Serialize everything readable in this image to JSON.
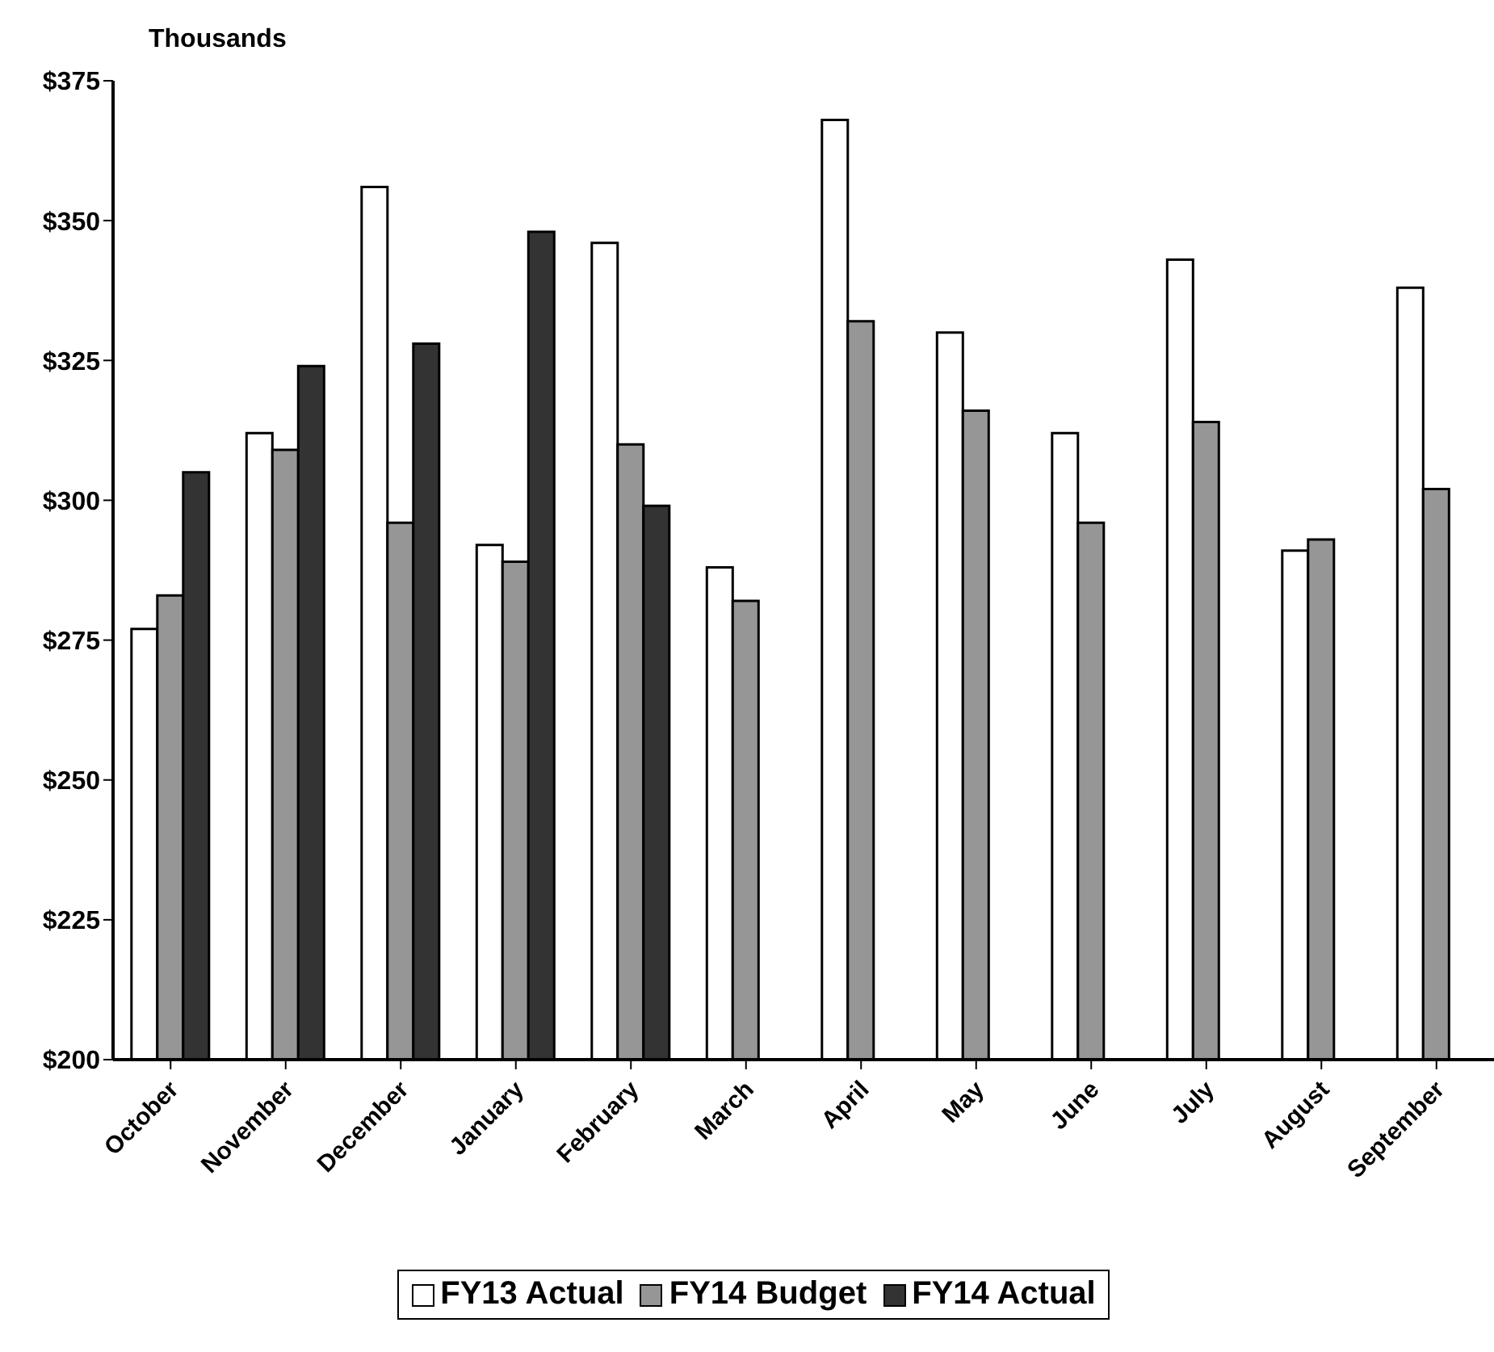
{
  "chart_data": {
    "type": "bar",
    "ylabel": "Thousands",
    "categories": [
      "October",
      "November",
      "December",
      "January",
      "February",
      "March",
      "April",
      "May",
      "June",
      "July",
      "August",
      "September"
    ],
    "series": [
      {
        "name": "FY13 Actual",
        "color": "#ffffff",
        "values": [
          277,
          312,
          356,
          292,
          346,
          288,
          368,
          330,
          312,
          343,
          291,
          338
        ]
      },
      {
        "name": "FY14 Budget",
        "color": "#969696",
        "values": [
          283,
          309,
          296,
          289,
          310,
          282,
          332,
          316,
          296,
          314,
          293,
          302
        ]
      },
      {
        "name": "FY14 Actual",
        "color": "#333333",
        "values": [
          305,
          324,
          328,
          348,
          299,
          null,
          null,
          null,
          null,
          null,
          null,
          null
        ]
      }
    ],
    "ylim": [
      200,
      375
    ],
    "yticks": [
      {
        "value": 200,
        "label": "$200"
      },
      {
        "value": 225,
        "label": "$225"
      },
      {
        "value": 250,
        "label": "$250"
      },
      {
        "value": 275,
        "label": "$275"
      },
      {
        "value": 300,
        "label": "$300"
      },
      {
        "value": 325,
        "label": "$325"
      },
      {
        "value": 350,
        "label": "$350"
      },
      {
        "value": 375,
        "label": "$375"
      }
    ],
    "legend": "bottom"
  }
}
